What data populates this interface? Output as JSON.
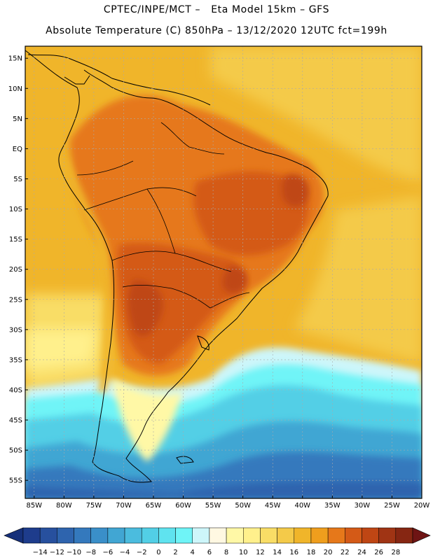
{
  "header": {
    "line1": "CPTEC/INPE/MCT –   Eta Model 15km – GFS",
    "line2": "Absolute Temperature (C) 850hPa – 13/12/2020 12UTC fct=199h"
  },
  "map": {
    "lat_labels": [
      "15N",
      "10N",
      "5N",
      "EQ",
      "5S",
      "10S",
      "15S",
      "20S",
      "25S",
      "30S",
      "35S",
      "40S",
      "45S",
      "50S",
      "55S"
    ],
    "lon_labels": [
      "85W",
      "80W",
      "75W",
      "70W",
      "65W",
      "60W",
      "55W",
      "50W",
      "45W",
      "40W",
      "35W",
      "30W",
      "25W",
      "20W"
    ],
    "lat_values": [
      15,
      10,
      5,
      0,
      -5,
      -10,
      -15,
      -20,
      -25,
      -30,
      -35,
      -40,
      -45,
      -50,
      -55
    ],
    "lon_values": [
      -85,
      -80,
      -75,
      -70,
      -65,
      -60,
      -55,
      -50,
      -45,
      -40,
      -35,
      -30,
      -25,
      -20
    ],
    "lat_range": [
      -58,
      17
    ],
    "lon_range": [
      -86.5,
      -20
    ]
  },
  "colorbar": {
    "labels": [
      "-14",
      "-12",
      "-10",
      "-8",
      "-6",
      "-4",
      "-2",
      "0",
      "2",
      "4",
      "6",
      "8",
      "10",
      "12",
      "14",
      "16",
      "18",
      "20",
      "22",
      "24",
      "26",
      "28"
    ],
    "colors": [
      "#1e3c8c",
      "#27509e",
      "#2e64ae",
      "#3479bd",
      "#3a8fc9",
      "#41a6d3",
      "#4bbcde",
      "#52cfe6",
      "#5fe3ef",
      "#6ff4f7",
      "#cdf6fa",
      "#fff8e2",
      "#fff8a6",
      "#fff08c",
      "#f9dd66",
      "#f4ca49",
      "#f0b52a",
      "#ef9e1d",
      "#e6781a",
      "#d45a17",
      "#bf4614",
      "#a03414",
      "#862612"
    ],
    "end_low_color": "#16307a",
    "end_high_color": "#6e1414"
  }
}
